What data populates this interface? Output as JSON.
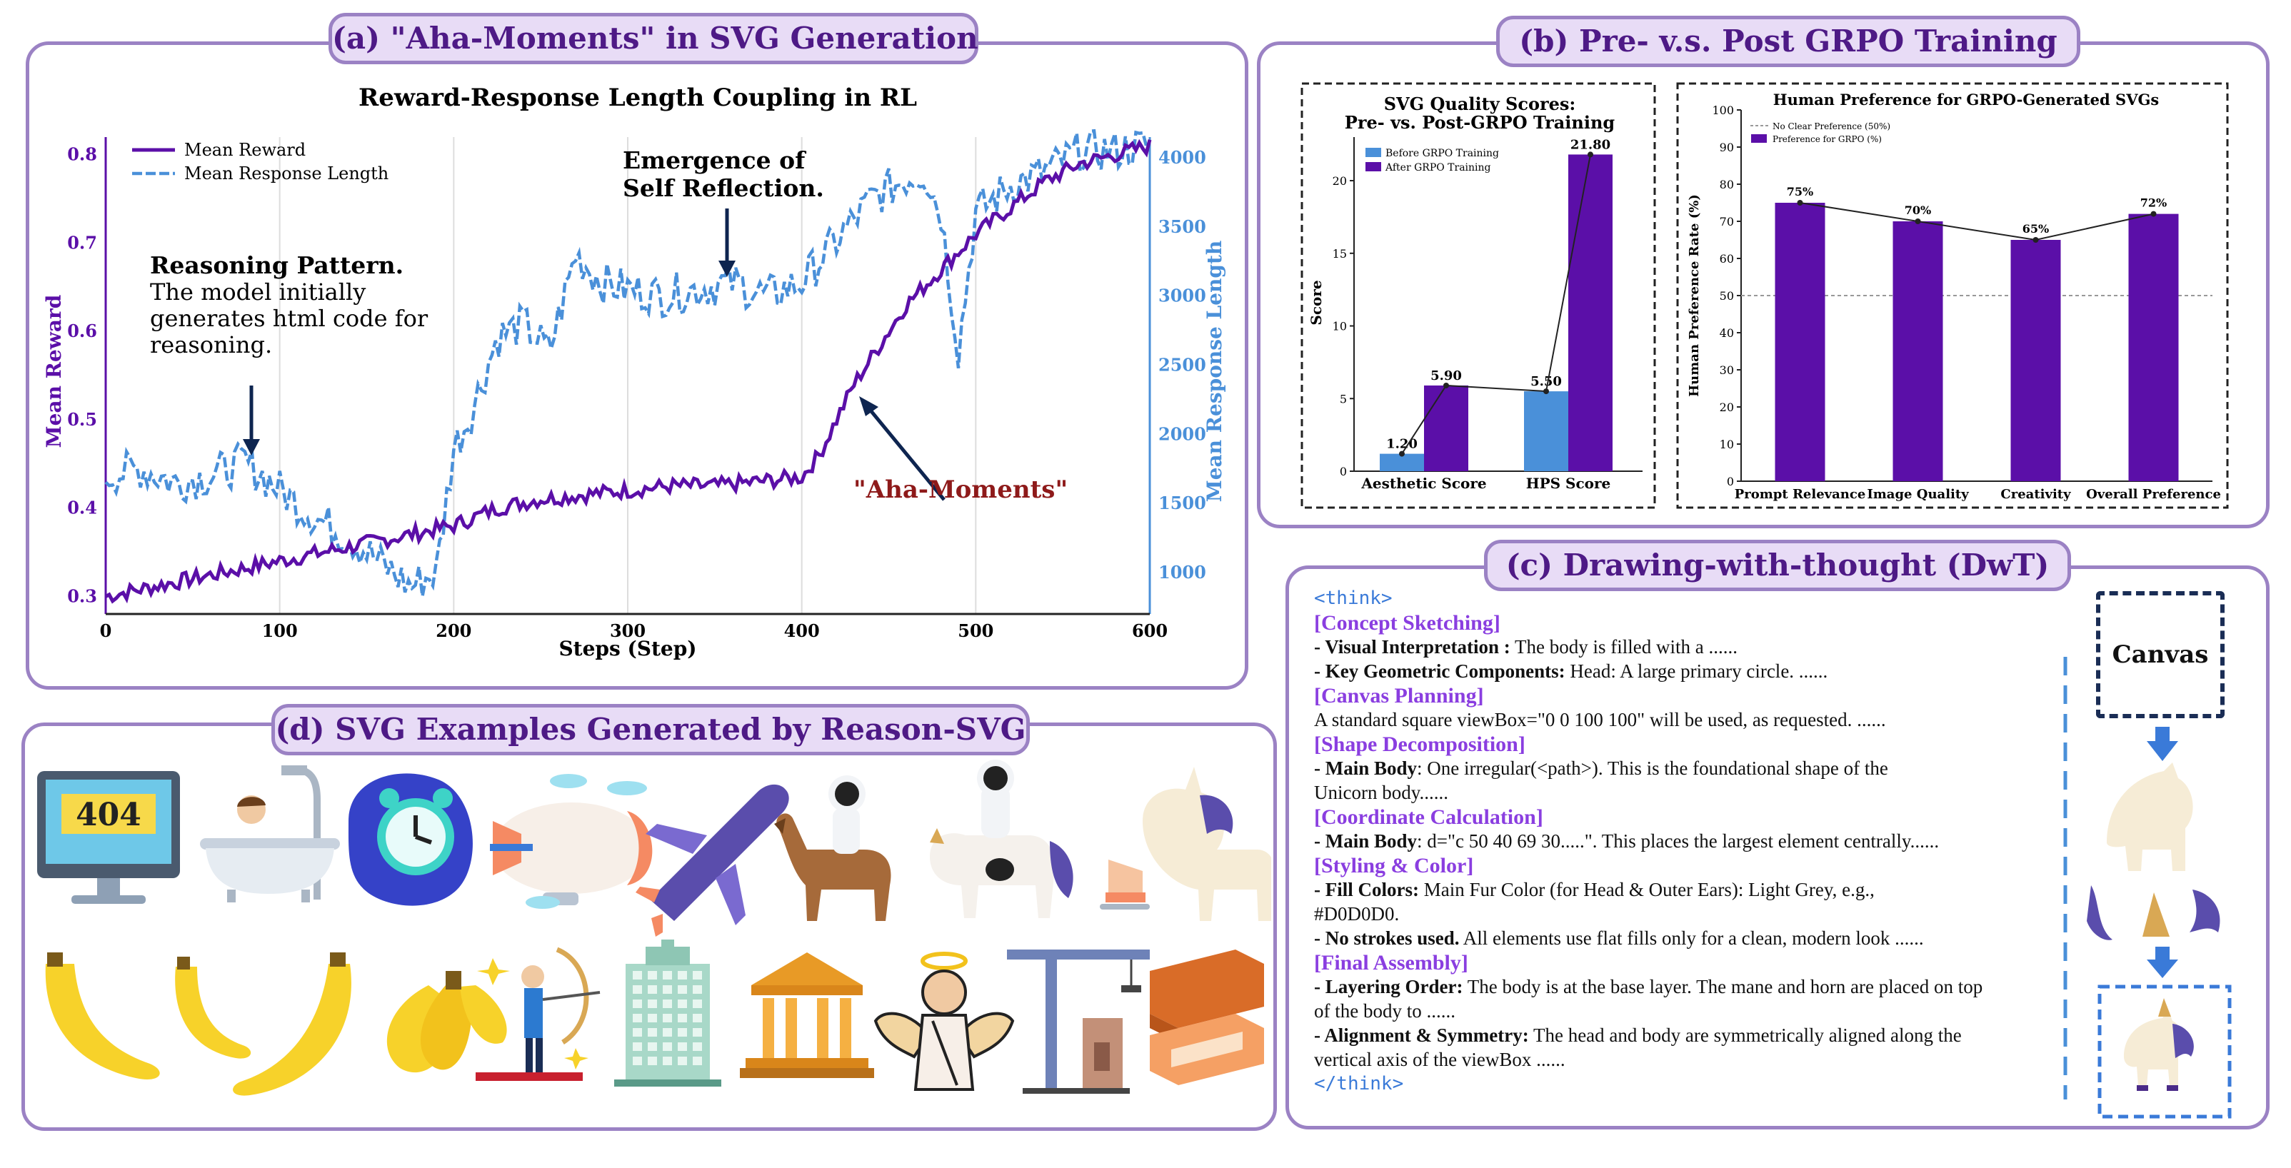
{
  "panel_a": {
    "title": "(a) \"Aha-Moments\" in SVG Generation",
    "chart_title": "Reward-Response Length Coupling in RL",
    "ylabel_left": "Mean Reward",
    "ylabel_right": "Mean Response Length",
    "xlabel": "Steps (Step)",
    "legend": [
      "Mean Reward",
      "Mean Response Length"
    ],
    "annotations": {
      "reasoning_title": "Reasoning Pattern.",
      "reasoning_lines": [
        "The model initially",
        "generates html code for",
        "reasoning."
      ],
      "reflection_lines": [
        "Emergence of",
        "Self Reflection."
      ],
      "aha": "\"Aha-Moments\""
    }
  },
  "panel_b": {
    "title": "(b) Pre- v.s. Post GRPO Training",
    "left": {
      "title_lines": [
        "SVG Quality Scores:",
        "Pre- vs. Post-GRPO Training"
      ],
      "ylabel": "Score",
      "legend": [
        "Before GRPO Training",
        "After GRPO Training"
      ]
    },
    "right": {
      "title": "Human Preference for GRPO-Generated SVGs",
      "ylabel": "Human Preference Rate (%)",
      "legend": [
        "No Clear Preference (50%)",
        "Preference for GRPO (%)"
      ]
    }
  },
  "panel_c": {
    "title": "(c) Drawing-with-thought (DwT)",
    "canvas_label": "Canvas",
    "lines": [
      {
        "kind": "think",
        "text": "<think>"
      },
      {
        "kind": "head",
        "text": "[Concept Sketching]"
      },
      {
        "kind": "item",
        "bold": "- Visual Interpretation :",
        "text": " The body is filled with a ......"
      },
      {
        "kind": "item",
        "bold": "- Key Geometric Components:",
        "text": " Head: A large primary circle. ......"
      },
      {
        "kind": "head",
        "text": "[Canvas Planning]"
      },
      {
        "kind": "item",
        "bold": "",
        "text": "A standard square viewBox=\"0 0 100 100\" will be used, as requested. ......"
      },
      {
        "kind": "head",
        "text": "[Shape Decomposition]"
      },
      {
        "kind": "item",
        "bold": "- Main Body",
        "text": ": One irregular(<path>). This is the foundational shape of the"
      },
      {
        "kind": "item",
        "bold": "",
        "text": "Unicorn body......"
      },
      {
        "kind": "head",
        "text": "[Coordinate Calculation]"
      },
      {
        "kind": "item",
        "bold": "- Main Body",
        "text": ": d=\"c 50 40 69 30.....\". This places the largest element centrally......"
      },
      {
        "kind": "head",
        "text": "[Styling & Color]"
      },
      {
        "kind": "item",
        "bold": "- Fill Colors:",
        "text": " Main Fur Color (for Head & Outer Ears): Light Grey, e.g.,"
      },
      {
        "kind": "item",
        "bold": "",
        "text": "#D0D0D0."
      },
      {
        "kind": "item",
        "bold": "- No strokes used.",
        "text": " All elements use flat fills only for a clean, modern look ......"
      },
      {
        "kind": "head",
        "text": "[Final Assembly]"
      },
      {
        "kind": "item",
        "bold": "- Layering Order:",
        "text": " The body is at the base layer. The mane and horn are placed on top"
      },
      {
        "kind": "item",
        "bold": "",
        "text": "of the body to ......"
      },
      {
        "kind": "item",
        "bold": "- Alignment & Symmetry:",
        "text": " The head and body are symmetrically aligned along the"
      },
      {
        "kind": "item",
        "bold": "",
        "text": "vertical axis of the viewBox ......"
      },
      {
        "kind": "think",
        "text": "</think>"
      }
    ]
  },
  "panel_d": {
    "title": "(d) SVG Examples Generated by Reason-SVG",
    "monitor_text": "404"
  },
  "colors": {
    "purple": "#5b0fa8",
    "blue": "#4a90d9",
    "frame": "#9b82c4",
    "title_bg": "#e8dcf6"
  },
  "chart_data": [
    {
      "type": "line",
      "title": "Reward-Response Length Coupling in RL",
      "xlabel": "Steps (Step)",
      "ylabel": "Mean Reward",
      "y2label": "Mean Response Length",
      "xlim": [
        0,
        600
      ],
      "ylim": [
        0.28,
        0.82
      ],
      "y2lim": [
        700,
        4150
      ],
      "xticks": [
        0,
        100,
        200,
        300,
        400,
        500,
        600
      ],
      "yticks": [
        0.3,
        0.4,
        0.5,
        0.6,
        0.7,
        0.8
      ],
      "y2ticks": [
        1000,
        1500,
        2000,
        2500,
        3000,
        3500,
        4000
      ],
      "series": [
        {
          "name": "Mean Reward",
          "axis": "left",
          "x": [
            0,
            25,
            50,
            75,
            100,
            125,
            150,
            175,
            200,
            225,
            250,
            275,
            300,
            325,
            350,
            375,
            400,
            410,
            420,
            430,
            440,
            450,
            460,
            480,
            500,
            520,
            540,
            560,
            580,
            600
          ],
          "y": [
            0.3,
            0.31,
            0.32,
            0.33,
            0.34,
            0.35,
            0.36,
            0.37,
            0.38,
            0.4,
            0.41,
            0.415,
            0.42,
            0.425,
            0.425,
            0.43,
            0.435,
            0.46,
            0.5,
            0.54,
            0.57,
            0.6,
            0.63,
            0.67,
            0.71,
            0.74,
            0.77,
            0.79,
            0.8,
            0.81
          ]
        },
        {
          "name": "Mean Response Length",
          "axis": "right",
          "x": [
            0,
            20,
            40,
            60,
            80,
            100,
            120,
            140,
            160,
            175,
            190,
            200,
            210,
            225,
            240,
            255,
            270,
            285,
            300,
            320,
            340,
            360,
            380,
            400,
            420,
            440,
            460,
            470,
            480,
            490,
            500,
            510,
            520,
            540,
            560,
            580,
            600
          ],
          "y": [
            1700,
            1750,
            1650,
            1700,
            1800,
            1600,
            1400,
            1250,
            1050,
            900,
            1000,
            1900,
            2150,
            2700,
            2800,
            2600,
            3300,
            3100,
            3050,
            3000,
            3050,
            3100,
            3000,
            3100,
            3400,
            3700,
            3850,
            3900,
            3600,
            2600,
            3600,
            3700,
            3800,
            3900,
            4050,
            4050,
            4100
          ]
        }
      ],
      "legend_position": "top-left",
      "grid": "vertical"
    },
    {
      "type": "bar",
      "title": "SVG Quality Scores: Pre- vs. Post-GRPO Training",
      "ylabel": "Score",
      "categories": [
        "Aesthetic Score",
        "HPS Score"
      ],
      "series": [
        {
          "name": "Before GRPO Training",
          "values": [
            1.2,
            5.5
          ]
        },
        {
          "name": "After GRPO Training",
          "values": [
            5.9,
            21.8
          ]
        }
      ],
      "value_labels": [
        [
          "1.20",
          "5.50"
        ],
        [
          "5.90",
          "21.80"
        ]
      ],
      "ylim": [
        0,
        23
      ],
      "yticks": [
        0,
        5,
        10,
        15,
        20
      ],
      "legend_position": "top-left"
    },
    {
      "type": "bar",
      "title": "Human Preference for GRPO-Generated SVGs",
      "ylabel": "Human Preference Rate (%)",
      "categories": [
        "Prompt Relevance",
        "Image Quality",
        "Creativity",
        "Overall Preference"
      ],
      "series": [
        {
          "name": "Preference for GRPO (%)",
          "values": [
            75,
            70,
            65,
            72
          ]
        }
      ],
      "value_labels": [
        "75%",
        "70%",
        "65%",
        "72%"
      ],
      "reference_line": {
        "name": "No Clear Preference (50%)",
        "value": 50
      },
      "ylim": [
        0,
        100
      ],
      "yticks": [
        0,
        10,
        20,
        30,
        40,
        50,
        60,
        70,
        80,
        90,
        100
      ],
      "legend_position": "top-left"
    }
  ]
}
